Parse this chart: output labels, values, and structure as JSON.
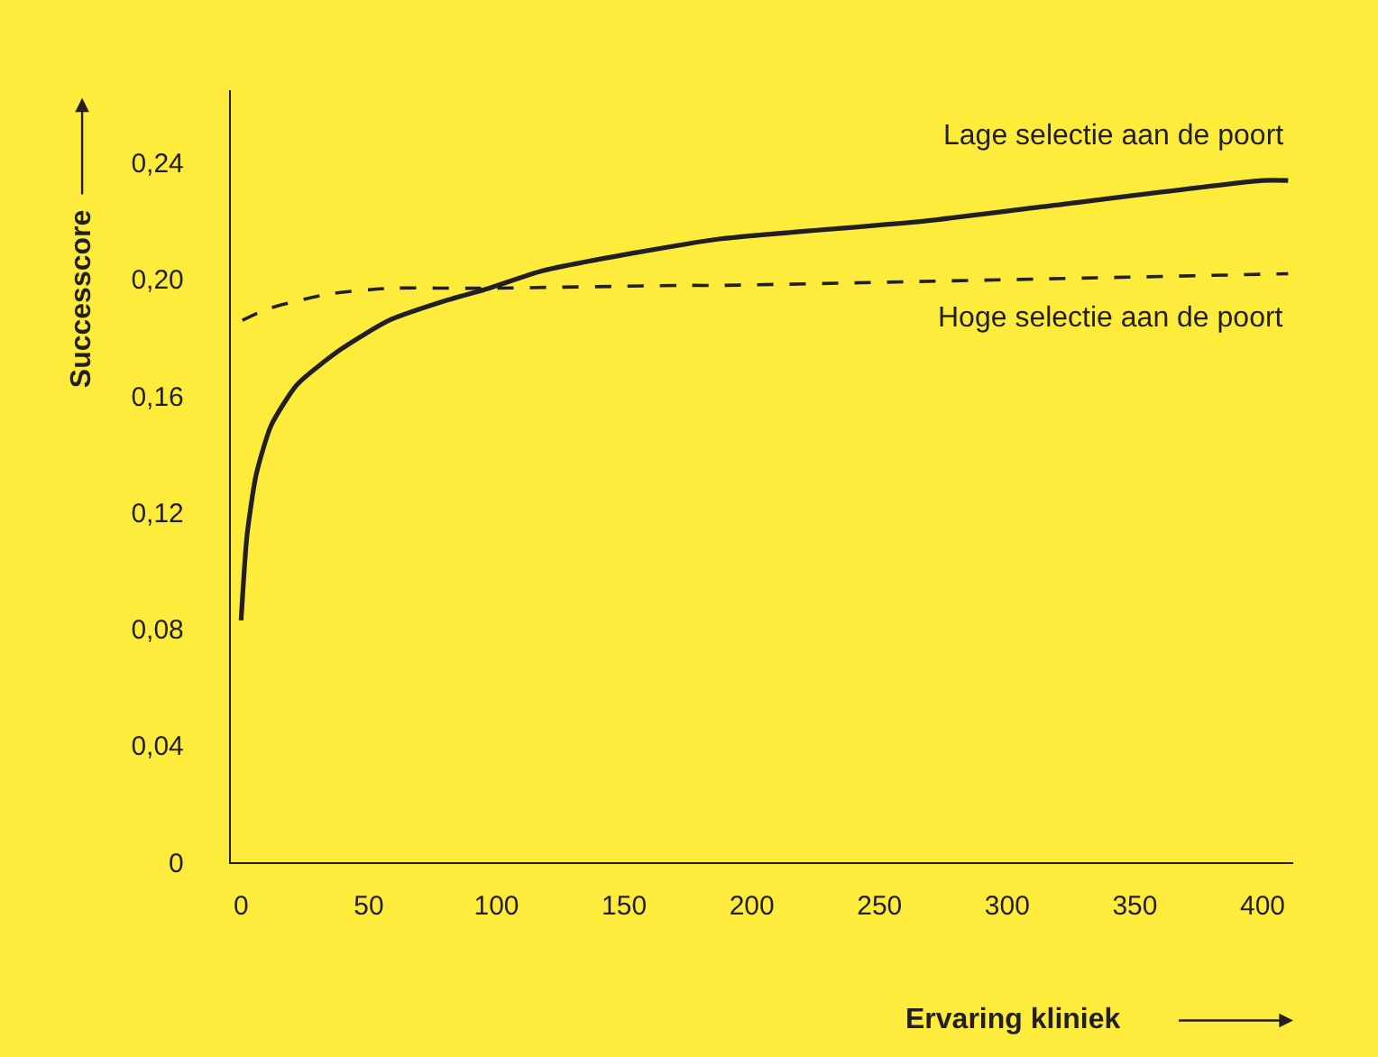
{
  "chart_data": {
    "type": "line",
    "xlabel": "Ervaring kliniek",
    "ylabel": "Successcore",
    "xlim": [
      -4,
      412
    ],
    "xticks": [
      0,
      50,
      100,
      150,
      200,
      250,
      300,
      350,
      400
    ],
    "ylim": [
      0,
      0.265
    ],
    "yticks": [
      0,
      {
        "value": 0.04,
        "label": "0,04"
      },
      {
        "value": 0.08,
        "label": "0,08"
      },
      {
        "value": 0.12,
        "label": "0,12"
      },
      {
        "value": 0.16,
        "label": "0,16"
      },
      {
        "value": 0.2,
        "label": "0,20"
      },
      {
        "value": 0.24,
        "label": "0,24"
      }
    ],
    "grid": false,
    "legend": false,
    "marker": "none",
    "series": [
      {
        "name": "Lage selectie aan de poort",
        "color": "#231f20",
        "line_style": "solid",
        "x": [
          0,
          2.3,
          5.9,
          11.8,
          22,
          39,
          58,
          81,
          97,
          118,
          153,
          188,
          267,
          314,
          400,
          410
        ],
        "values": [
          0.083,
          0.112,
          0.133,
          0.15,
          0.164,
          0.176,
          0.186,
          0.193,
          0.197,
          0.203,
          0.209,
          0.214,
          0.22,
          0.225,
          0.234,
          0.234
        ]
      },
      {
        "name": "Hoge selectie aan de poort",
        "color": "#231f20",
        "line_style": "dashed",
        "x": [
          0.5,
          10.6,
          34,
          58,
          93,
          174,
          188,
          410
        ],
        "values": [
          0.186,
          0.19,
          0.195,
          0.197,
          0.197,
          0.198,
          0.198,
          0.202
        ]
      }
    ]
  }
}
